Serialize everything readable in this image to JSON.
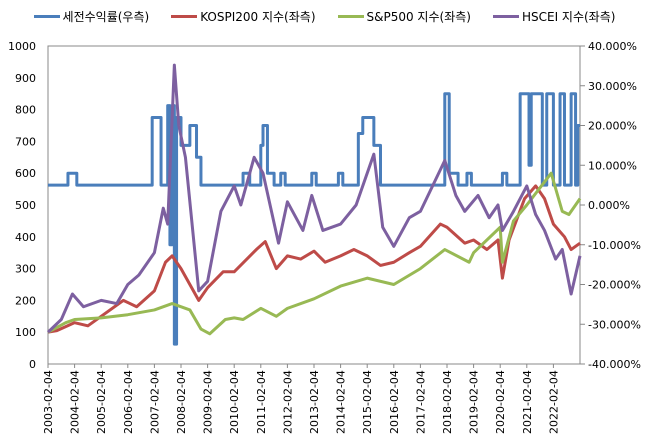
{
  "chart_data": {
    "type": "line",
    "title": "",
    "x_tick_labels": [
      "2003-02-04",
      "2004-02-04",
      "2005-02-04",
      "2006-02-04",
      "2007-02-04",
      "2008-02-04",
      "2009-02-04",
      "2010-02-04",
      "2011-02-04",
      "2012-02-04",
      "2013-02-04",
      "2014-02-04",
      "2015-02-04",
      "2016-02-04",
      "2017-02-04",
      "2018-02-04",
      "2019-02-04",
      "2020-02-04",
      "2021-02-04",
      "2022-02-04"
    ],
    "xlim": [
      "2003-02",
      "2023-02"
    ],
    "y_left": {
      "ylim": [
        0,
        1000
      ],
      "ticks": [
        "0",
        "100",
        "200",
        "300",
        "400",
        "500",
        "600",
        "700",
        "800",
        "900",
        "1000"
      ]
    },
    "y_right": {
      "ylim": [
        -40,
        40
      ],
      "ticks": [
        "-40.000%",
        "-30.000%",
        "-20.000%",
        "-10.000%",
        "0.000%",
        "10.000%",
        "20.000%",
        "30.000%",
        "40.000%"
      ]
    },
    "grid": false,
    "legend_position": "top",
    "series": [
      {
        "name": "세전수익률(우측)",
        "axis": "right",
        "color": "#4a7ebb",
        "step": true,
        "points": [
          [
            "2003-02",
            5
          ],
          [
            "2003-11",
            8
          ],
          [
            "2004-03",
            5
          ],
          [
            "2007-01",
            22
          ],
          [
            "2007-05",
            5
          ],
          [
            "2007-08",
            25
          ],
          [
            "2007-09",
            -10
          ],
          [
            "2007-10",
            25
          ],
          [
            "2007-11",
            -35
          ],
          [
            "2007-12",
            22
          ],
          [
            "2008-02",
            15
          ],
          [
            "2008-06",
            20
          ],
          [
            "2008-09",
            12
          ],
          [
            "2008-11",
            5
          ],
          [
            "2010-06",
            8
          ],
          [
            "2010-09",
            5
          ],
          [
            "2011-02",
            15
          ],
          [
            "2011-03",
            20
          ],
          [
            "2011-05",
            8
          ],
          [
            "2011-08",
            5
          ],
          [
            "2011-11",
            8
          ],
          [
            "2012-01",
            5
          ],
          [
            "2013-01",
            8
          ],
          [
            "2013-03",
            5
          ],
          [
            "2014-01",
            8
          ],
          [
            "2014-03",
            5
          ],
          [
            "2014-10",
            18
          ],
          [
            "2014-12",
            22
          ],
          [
            "2015-05",
            15
          ],
          [
            "2015-08",
            5
          ],
          [
            "2018-01",
            28
          ],
          [
            "2018-03",
            8
          ],
          [
            "2018-07",
            5
          ],
          [
            "2018-11",
            8
          ],
          [
            "2019-01",
            5
          ],
          [
            "2020-03",
            8
          ],
          [
            "2020-05",
            5
          ],
          [
            "2020-11",
            28
          ],
          [
            "2021-03",
            10
          ],
          [
            "2021-04",
            28
          ],
          [
            "2021-09",
            5
          ],
          [
            "2021-11",
            28
          ],
          [
            "2022-02",
            5
          ],
          [
            "2022-05",
            28
          ],
          [
            "2022-07",
            5
          ],
          [
            "2022-10",
            28
          ],
          [
            "2022-12",
            5
          ],
          [
            "2023-01",
            20
          ],
          [
            "2023-02",
            20
          ]
        ]
      },
      {
        "name": "KOSPI200 지수(좌측)",
        "axis": "left",
        "color": "#be4b48",
        "points": [
          [
            "2003-02",
            100
          ],
          [
            "2003-06",
            105
          ],
          [
            "2004-02",
            130
          ],
          [
            "2004-08",
            120
          ],
          [
            "2005-02",
            150
          ],
          [
            "2005-12",
            200
          ],
          [
            "2006-06",
            180
          ],
          [
            "2007-02",
            230
          ],
          [
            "2007-07",
            320
          ],
          [
            "2007-10",
            340
          ],
          [
            "2008-02",
            300
          ],
          [
            "2008-10",
            200
          ],
          [
            "2009-02",
            240
          ],
          [
            "2009-09",
            290
          ],
          [
            "2010-02",
            290
          ],
          [
            "2010-12",
            360
          ],
          [
            "2011-04",
            385
          ],
          [
            "2011-09",
            300
          ],
          [
            "2012-02",
            340
          ],
          [
            "2012-08",
            330
          ],
          [
            "2013-02",
            355
          ],
          [
            "2013-07",
            320
          ],
          [
            "2014-02",
            340
          ],
          [
            "2014-08",
            360
          ],
          [
            "2015-02",
            340
          ],
          [
            "2015-08",
            310
          ],
          [
            "2016-02",
            320
          ],
          [
            "2016-09",
            350
          ],
          [
            "2017-02",
            370
          ],
          [
            "2017-11",
            440
          ],
          [
            "2018-02",
            430
          ],
          [
            "2018-10",
            380
          ],
          [
            "2019-02",
            390
          ],
          [
            "2019-08",
            360
          ],
          [
            "2020-01",
            390
          ],
          [
            "2020-03",
            270
          ],
          [
            "2020-06",
            390
          ],
          [
            "2021-01",
            520
          ],
          [
            "2021-06",
            560
          ],
          [
            "2021-10",
            520
          ],
          [
            "2022-02",
            440
          ],
          [
            "2022-07",
            400
          ],
          [
            "2022-10",
            360
          ],
          [
            "2023-02",
            380
          ]
        ]
      },
      {
        "name": "S&P500 지수(좌측)",
        "axis": "left",
        "color": "#98b954",
        "points": [
          [
            "2003-02",
            100
          ],
          [
            "2003-10",
            130
          ],
          [
            "2004-02",
            140
          ],
          [
            "2005-02",
            145
          ],
          [
            "2006-02",
            155
          ],
          [
            "2007-02",
            170
          ],
          [
            "2007-10",
            190
          ],
          [
            "2008-06",
            170
          ],
          [
            "2008-11",
            110
          ],
          [
            "2009-03",
            95
          ],
          [
            "2009-10",
            140
          ],
          [
            "2010-02",
            145
          ],
          [
            "2010-06",
            140
          ],
          [
            "2011-02",
            175
          ],
          [
            "2011-09",
            150
          ],
          [
            "2012-02",
            175
          ],
          [
            "2013-02",
            205
          ],
          [
            "2014-02",
            245
          ],
          [
            "2015-02",
            270
          ],
          [
            "2016-02",
            250
          ],
          [
            "2017-02",
            300
          ],
          [
            "2018-01",
            360
          ],
          [
            "2018-12",
            320
          ],
          [
            "2019-02",
            350
          ],
          [
            "2020-02",
            430
          ],
          [
            "2020-03",
            320
          ],
          [
            "2020-08",
            450
          ],
          [
            "2021-02",
            500
          ],
          [
            "2022-01",
            600
          ],
          [
            "2022-06",
            480
          ],
          [
            "2022-09",
            470
          ],
          [
            "2023-02",
            520
          ]
        ]
      },
      {
        "name": "HSCEI 지수(좌측)",
        "axis": "left",
        "color": "#7d60a0",
        "points": [
          [
            "2003-02",
            100
          ],
          [
            "2003-08",
            140
          ],
          [
            "2004-01",
            220
          ],
          [
            "2004-06",
            180
          ],
          [
            "2005-02",
            200
          ],
          [
            "2005-09",
            190
          ],
          [
            "2006-02",
            250
          ],
          [
            "2006-07",
            280
          ],
          [
            "2007-02",
            350
          ],
          [
            "2007-06",
            490
          ],
          [
            "2007-08",
            440
          ],
          [
            "2007-11",
            940
          ],
          [
            "2008-01",
            750
          ],
          [
            "2008-04",
            650
          ],
          [
            "2008-10",
            230
          ],
          [
            "2009-02",
            260
          ],
          [
            "2009-08",
            480
          ],
          [
            "2010-02",
            560
          ],
          [
            "2010-05",
            500
          ],
          [
            "2010-11",
            650
          ],
          [
            "2011-03",
            600
          ],
          [
            "2011-10",
            380
          ],
          [
            "2012-02",
            510
          ],
          [
            "2012-09",
            420
          ],
          [
            "2013-01",
            530
          ],
          [
            "2013-06",
            420
          ],
          [
            "2014-02",
            440
          ],
          [
            "2014-09",
            500
          ],
          [
            "2015-05",
            660
          ],
          [
            "2015-09",
            430
          ],
          [
            "2016-02",
            370
          ],
          [
            "2016-09",
            460
          ],
          [
            "2017-02",
            480
          ],
          [
            "2018-01",
            640
          ],
          [
            "2018-06",
            530
          ],
          [
            "2018-10",
            480
          ],
          [
            "2019-04",
            530
          ],
          [
            "2019-09",
            460
          ],
          [
            "2020-01",
            500
          ],
          [
            "2020-03",
            420
          ],
          [
            "2020-08",
            480
          ],
          [
            "2021-02",
            560
          ],
          [
            "2021-06",
            470
          ],
          [
            "2021-10",
            420
          ],
          [
            "2022-03",
            330
          ],
          [
            "2022-06",
            360
          ],
          [
            "2022-10",
            220
          ],
          [
            "2023-02",
            340
          ]
        ]
      }
    ]
  }
}
